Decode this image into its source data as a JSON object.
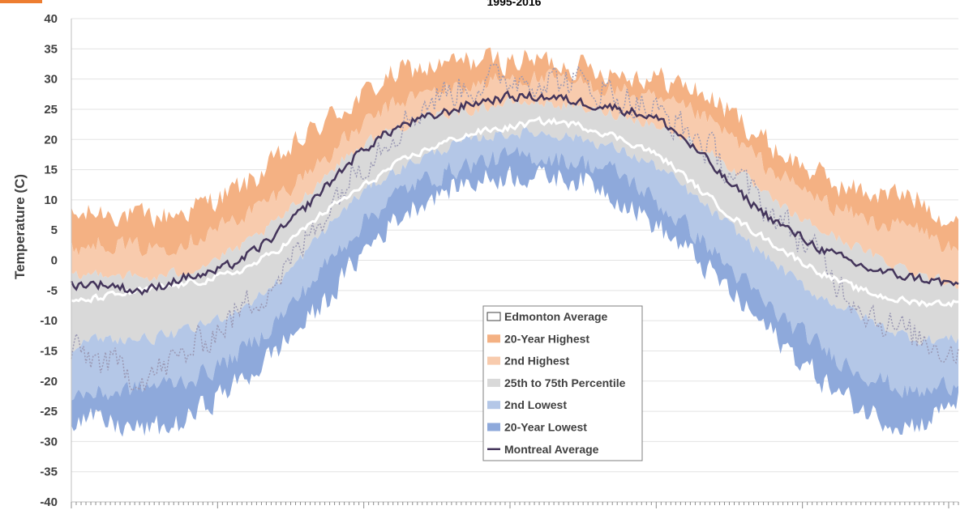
{
  "chart_data": {
    "type": "area",
    "title": "1995-2016",
    "ylabel": "Temperature (C)",
    "xlabel": "",
    "ylim": [
      -40,
      40
    ],
    "yticks": [
      40,
      35,
      30,
      25,
      20,
      15,
      10,
      5,
      0,
      -5,
      -10,
      -15,
      -20,
      -25,
      -30,
      -35,
      -40
    ],
    "x_range": [
      1,
      365
    ],
    "grid": true,
    "legend_position": "center-bottom",
    "colors": {
      "highest": "#F4B183",
      "second_highest": "#F8CBAD",
      "percentile": "#D9D9D9",
      "second_lowest": "#B4C7E7",
      "lowest": "#8EA9DB",
      "edmonton": "#FFFFFF",
      "montreal": "#44355B",
      "dotted": "#9A98B3",
      "accent": "#ED7D31"
    },
    "legend": [
      {
        "key": "edmonton",
        "label": "Edmonton Average"
      },
      {
        "key": "highest",
        "label": "20-Year Highest"
      },
      {
        "key": "second_highest",
        "label": "2nd Highest"
      },
      {
        "key": "percentile",
        "label": "25th to 75th Percentile"
      },
      {
        "key": "second_lowest",
        "label": "2nd Lowest"
      },
      {
        "key": "lowest",
        "label": "20-Year Lowest"
      },
      {
        "key": "montreal",
        "label": "Montreal Average"
      }
    ],
    "series_knots": {
      "day": [
        1,
        15,
        31,
        46,
        59,
        74,
        90,
        105,
        120,
        135,
        151,
        166,
        181,
        196,
        212,
        227,
        243,
        258,
        273,
        288,
        304,
        319,
        334,
        349,
        365
      ],
      "highest": [
        7,
        8,
        7,
        8,
        10,
        13,
        18,
        23,
        27,
        31,
        32,
        33,
        33,
        33,
        32,
        31,
        30,
        28,
        24,
        19,
        15,
        12,
        11,
        10,
        6
      ],
      "second_highest": [
        2,
        3,
        2,
        3,
        5,
        8,
        12,
        17,
        22,
        26,
        28,
        29,
        30,
        30,
        29,
        28,
        26,
        24,
        20,
        15,
        11,
        8,
        6,
        5,
        1
      ],
      "p75": [
        -3,
        -2,
        -3,
        -2,
        0,
        3,
        8,
        14,
        19,
        22,
        24,
        25,
        26,
        26,
        25,
        24,
        22,
        19,
        15,
        10,
        6,
        3,
        0,
        -2,
        -4
      ],
      "p25": [
        -14,
        -13,
        -13,
        -12,
        -10,
        -7,
        -2,
        5,
        11,
        15,
        18,
        20,
        21,
        21,
        20,
        18,
        15,
        10,
        5,
        0,
        -5,
        -8,
        -11,
        -13,
        -13
      ],
      "second_lowest": [
        -22,
        -22,
        -21,
        -20,
        -18,
        -14,
        -8,
        -1,
        6,
        11,
        14,
        16,
        17,
        17,
        16,
        14,
        9,
        4,
        -2,
        -8,
        -13,
        -17,
        -20,
        -22,
        -20
      ],
      "lowest": [
        -26,
        -27,
        -28,
        -27,
        -23,
        -19,
        -13,
        -7,
        1,
        7,
        11,
        13,
        14,
        14,
        13,
        10,
        5,
        0,
        -6,
        -12,
        -18,
        -23,
        -26,
        -27,
        -23
      ],
      "edmonton": [
        -7,
        -6,
        -5,
        -4,
        -3,
        -1,
        3,
        8,
        12,
        16,
        19,
        21,
        22,
        23,
        22,
        20,
        17,
        12,
        7,
        3,
        -1,
        -4,
        -6,
        -7,
        -7
      ],
      "montreal": [
        -4,
        -4,
        -5,
        -3,
        -2,
        1,
        6,
        12,
        18,
        22,
        24,
        26,
        27,
        27,
        26,
        25,
        23,
        18,
        12,
        7,
        3,
        0,
        -2,
        -3,
        -4
      ],
      "dotted": [
        -15,
        -17,
        -19,
        -16,
        -12,
        -7,
        -1,
        8,
        16,
        22,
        27,
        29,
        30,
        30,
        29,
        27,
        24,
        20,
        14,
        8,
        2,
        -5,
        -10,
        -13,
        -15
      ]
    }
  }
}
